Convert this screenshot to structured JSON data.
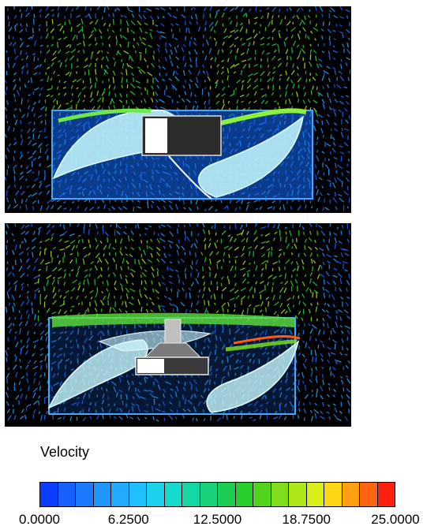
{
  "legend": {
    "title": "Velocity",
    "ticks": [
      "0.0000",
      "6.2500",
      "12.5000",
      "18.7500",
      "25.0000"
    ],
    "range": [
      0,
      25
    ],
    "bin_count": 20,
    "colors": [
      "#0b3dff",
      "#1560ff",
      "#1a7bff",
      "#1f95ff",
      "#22aaff",
      "#20c0ff",
      "#1ad2ec",
      "#16dbcc",
      "#14d6a2",
      "#17d27a",
      "#1bcd52",
      "#27ce2c",
      "#52d41e",
      "#80dc1c",
      "#aee61a",
      "#d8ee17",
      "#ffd514",
      "#ffa012",
      "#ff6410",
      "#ff2010"
    ]
  },
  "panels": [
    {
      "name": "top-view",
      "quantity": "Velocity"
    },
    {
      "name": "bottom-view",
      "quantity": "Velocity"
    }
  ]
}
